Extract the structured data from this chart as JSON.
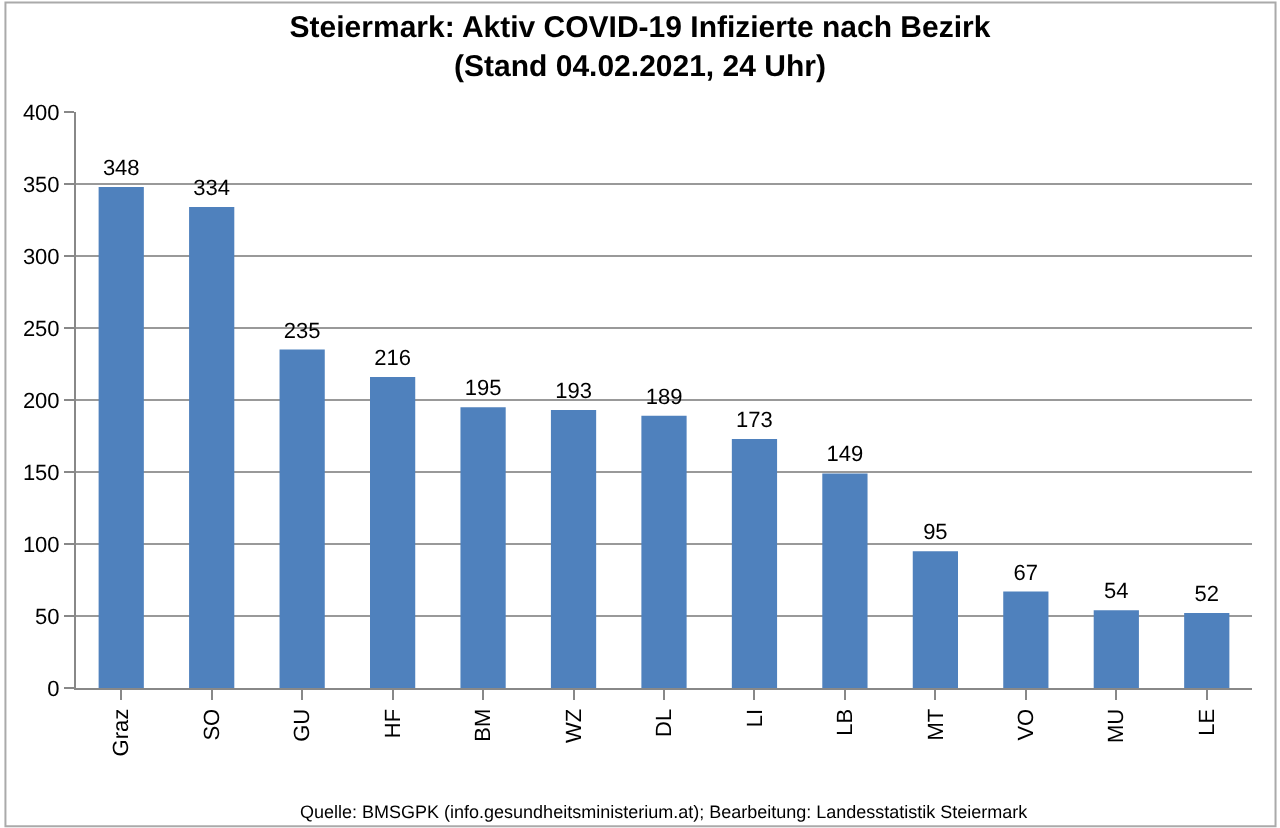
{
  "chart_data": {
    "type": "bar",
    "title": "Steiermark: Aktiv COVID-19 Infizierte nach Bezirk\n(Stand 04.02.2021, 24 Uhr)",
    "categories": [
      "Graz",
      "SO",
      "GU",
      "HF",
      "BM",
      "WZ",
      "DL",
      "LI",
      "LB",
      "MT",
      "VO",
      "MU",
      "LE"
    ],
    "values": [
      348,
      334,
      235,
      216,
      195,
      193,
      189,
      173,
      149,
      95,
      67,
      54,
      52
    ],
    "color": "#4f81bd",
    "data_labels": true,
    "ylim": [
      0,
      400
    ],
    "yticks": [
      0,
      50,
      100,
      150,
      200,
      250,
      300,
      350,
      400
    ],
    "grid": "y",
    "legend": false,
    "annotations": [
      "Quelle: BMSGPK (info.gesundheitsministerium.at); Bearbeitung: Landesstatistik Steiermark"
    ]
  }
}
